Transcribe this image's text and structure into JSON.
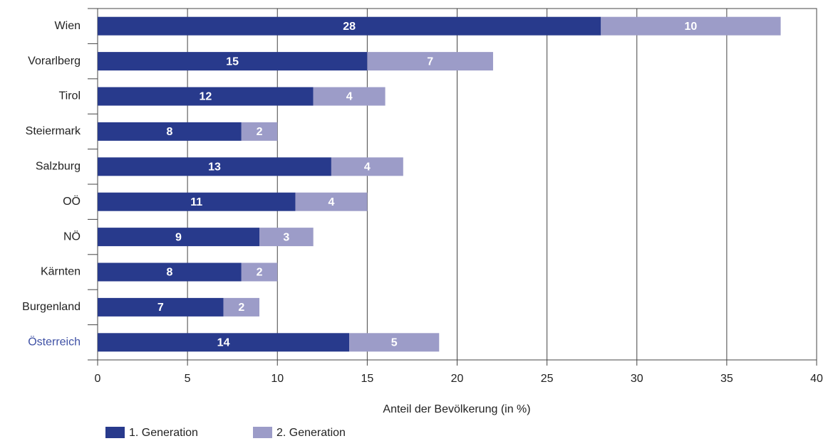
{
  "chart_data": {
    "type": "stacked-bar-horizontal",
    "categories": [
      "Wien",
      "Vorarlberg",
      "Tirol",
      "Steiermark",
      "Salzburg",
      "OÖ",
      "NÖ",
      "Kärnten",
      "Burgenland",
      "Österreich"
    ],
    "series": [
      {
        "name": "1. Generation",
        "color": "#283a8c",
        "values": [
          28,
          15,
          12,
          8,
          13,
          11,
          9,
          8,
          7,
          14
        ]
      },
      {
        "name": "2. Generation",
        "color": "#9c9cc8",
        "values": [
          10,
          7,
          4,
          2,
          4,
          4,
          3,
          2,
          2,
          5
        ]
      }
    ],
    "x_label": "Anteil der Bevölkerung (in %)",
    "xlim": [
      0,
      40
    ],
    "xticks": [
      0,
      5,
      10,
      15,
      20,
      25,
      30,
      35,
      40
    ],
    "grid": true,
    "legend": "bottom-left"
  }
}
